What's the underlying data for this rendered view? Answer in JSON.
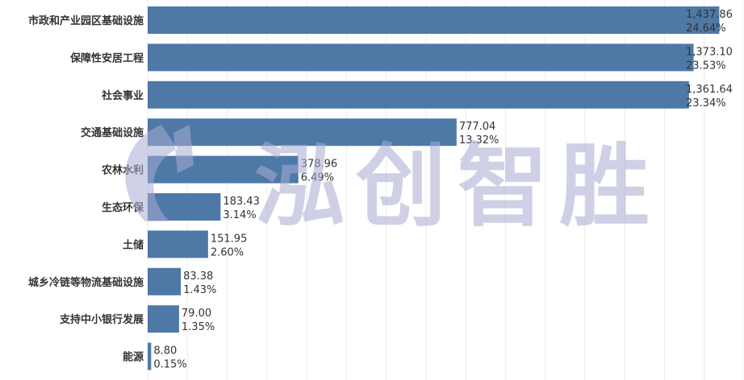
{
  "chart_data": {
    "type": "bar",
    "orientation": "horizontal",
    "categories": [
      "市政和产业园区基础设施",
      "保障性安居工程",
      "社会事业",
      "交通基础设施",
      "农林水利",
      "生态环保",
      "土储",
      "城乡冷链等物流基础设施",
      "支持中小银行发展",
      "能源"
    ],
    "values": [
      1437.86,
      1373.1,
      1361.64,
      777.04,
      378.96,
      183.43,
      151.95,
      83.38,
      79.0,
      8.8
    ],
    "value_labels": [
      "1,437.86",
      "1,373.10",
      "1,361.64",
      "777.04",
      "378.96",
      "183.43",
      "151.95",
      "83.38",
      "79.00",
      "8.80"
    ],
    "percent_labels": [
      "24.64%",
      "23.53%",
      "23.34%",
      "13.32%",
      "6.49%",
      "3.14%",
      "2.60%",
      "1.43%",
      "1.35%",
      "0.15%"
    ],
    "xlim": [
      0,
      1500
    ],
    "grid": true,
    "legend": "none",
    "bar_color": "#4e79a7"
  },
  "watermark": {
    "text": "泓创智胜"
  }
}
